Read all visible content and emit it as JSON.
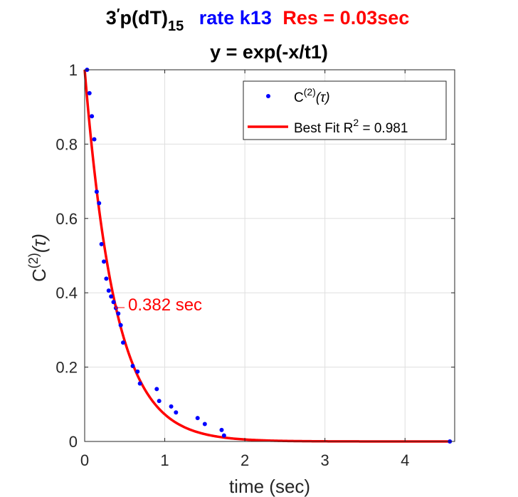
{
  "chart_data": {
    "type": "scatter",
    "title": {
      "part1_main": "3",
      "part1_prime": "′",
      "part1_rest": "p(dT)",
      "part1_sub": "15",
      "part2": "rate k13",
      "part3": "Res = 0.03sec",
      "line2": "y = exp(-x/t1)"
    },
    "xlabel": "time (sec)",
    "ylabel_main": "C",
    "ylabel_sup": "(2)",
    "ylabel_arg": "(τ)",
    "xlim": [
      0,
      4.62
    ],
    "ylim": [
      0,
      1
    ],
    "xticks": [
      "0",
      "1",
      "2",
      "3",
      "4"
    ],
    "xtick_values": [
      0,
      1,
      2,
      3,
      4
    ],
    "yticks": [
      "0",
      "0.2",
      "0.4",
      "0.6",
      "0.8",
      "1"
    ],
    "ytick_values": [
      0,
      0.2,
      0.4,
      0.6,
      0.8,
      1
    ],
    "grid": true,
    "legend_position": "top-right",
    "series": [
      {
        "name_main": "C",
        "name_sup": "(2)",
        "name_arg": "(τ)",
        "color": "#0000ff",
        "x": [
          0.03,
          0.06,
          0.09,
          0.12,
          0.15,
          0.18,
          0.21,
          0.24,
          0.27,
          0.3,
          0.33,
          0.36,
          0.39,
          0.42,
          0.45,
          0.48,
          0.6,
          0.66,
          0.69,
          0.9,
          0.93,
          1.08,
          1.14,
          1.41,
          1.5,
          1.71,
          1.74,
          4.56
        ],
        "y": [
          1.0,
          0.937,
          0.875,
          0.813,
          0.672,
          0.641,
          0.531,
          0.484,
          0.438,
          0.406,
          0.39,
          0.375,
          0.359,
          0.344,
          0.313,
          0.266,
          0.203,
          0.188,
          0.156,
          0.141,
          0.109,
          0.094,
          0.078,
          0.063,
          0.047,
          0.031,
          0.016,
          0.0
        ]
      },
      {
        "name_main": "Best Fit R",
        "name_sup": "2",
        "name_rest": " = 0.981",
        "color": "#ff0000",
        "type": "line",
        "tau": 0.382
      }
    ],
    "annotation": {
      "text": "←0.382 sec",
      "x": 0.382,
      "color": "#ff0000"
    }
  }
}
